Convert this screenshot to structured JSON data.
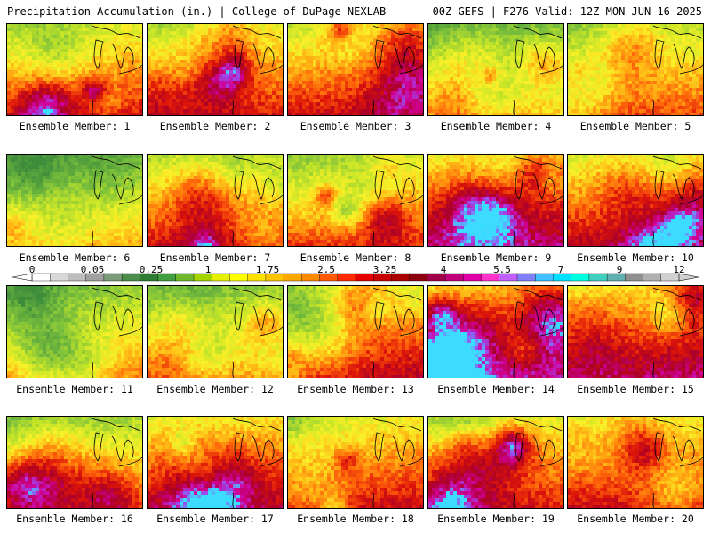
{
  "header": {
    "title": "Precipitation Accumulation (in.) | College of DuPage NEXLAB",
    "run_info": "00Z GEFS | F276 Valid: 12Z MON JUN 16 2025"
  },
  "members": [
    {
      "label": "Ensemble Member: 1",
      "wetness": 0.55
    },
    {
      "label": "Ensemble Member: 2",
      "wetness": 0.55
    },
    {
      "label": "Ensemble Member: 3",
      "wetness": 0.6
    },
    {
      "label": "Ensemble Member: 4",
      "wetness": 0.3
    },
    {
      "label": "Ensemble Member: 5",
      "wetness": 0.45
    },
    {
      "label": "Ensemble Member: 6",
      "wetness": 0.25
    },
    {
      "label": "Ensemble Member: 7",
      "wetness": 0.55
    },
    {
      "label": "Ensemble Member: 8",
      "wetness": 0.5
    },
    {
      "label": "Ensemble Member: 9",
      "wetness": 0.75
    },
    {
      "label": "Ensemble Member: 10",
      "wetness": 0.65
    },
    {
      "label": "Ensemble Member: 11",
      "wetness": 0.35
    },
    {
      "label": "Ensemble Member: 12",
      "wetness": 0.35
    },
    {
      "label": "Ensemble Member: 13",
      "wetness": 0.65
    },
    {
      "label": "Ensemble Member: 14",
      "wetness": 0.8
    },
    {
      "label": "Ensemble Member: 15",
      "wetness": 0.75
    },
    {
      "label": "Ensemble Member: 16",
      "wetness": 0.4
    },
    {
      "label": "Ensemble Member: 17",
      "wetness": 0.65
    },
    {
      "label": "Ensemble Member: 18",
      "wetness": 0.6
    },
    {
      "label": "Ensemble Member: 19",
      "wetness": 0.55
    },
    {
      "label": "Ensemble Member: 20",
      "wetness": 0.6
    }
  ],
  "colorbar": {
    "tick_labels": [
      "0",
      "0.05",
      "0.25",
      "1",
      "1.75",
      "2.5",
      "3.25",
      "4",
      "5.5",
      "7",
      "9",
      "12"
    ],
    "colors": [
      "#ffffff",
      "#d9d9d9",
      "#bdbdbd",
      "#a0a0a0",
      "#7a9a7a",
      "#4c8c4c",
      "#2e7d32",
      "#3f9e3f",
      "#6fba2c",
      "#a6d400",
      "#e6f000",
      "#ffff00",
      "#ffe100",
      "#ffc400",
      "#ffa800",
      "#ff8a00",
      "#ff5a00",
      "#ff2a00",
      "#e60000",
      "#c80000",
      "#aa0000",
      "#8c0010",
      "#a0004a",
      "#c0007a",
      "#e000a8",
      "#ff33cc",
      "#c060ff",
      "#8080ff",
      "#40c0ff",
      "#00e0ff",
      "#00ffe0",
      "#40d0c0",
      "#60b0b0",
      "#909090",
      "#b0b0b0",
      "#d0d0d0"
    ]
  }
}
